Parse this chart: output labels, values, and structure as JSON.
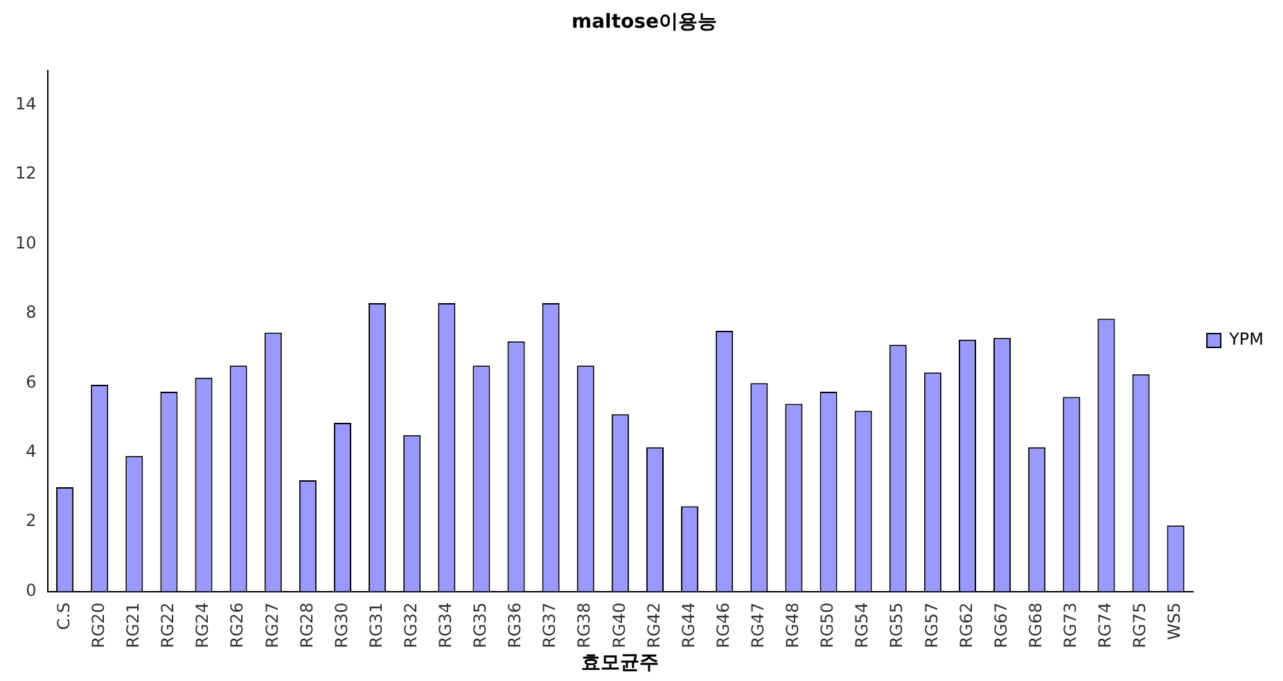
{
  "chart_data": {
    "type": "bar",
    "title": "maltose이용능",
    "xlabel": "효모균주",
    "categories": [
      "C.S",
      "RG20",
      "RG21",
      "RG22",
      "RG24",
      "RG26",
      "RG27",
      "RG28",
      "RG30",
      "RG31",
      "RG32",
      "RG34",
      "RG35",
      "RG36",
      "RG37",
      "RG38",
      "RG40",
      "RG42",
      "RG44",
      "RG46",
      "RG47",
      "RG48",
      "RG50",
      "RG54",
      "RG55",
      "RG57",
      "RG62",
      "RG67",
      "RG68",
      "RG73",
      "RG74",
      "RG75",
      "WS5"
    ],
    "series": [
      {
        "name": "YPM",
        "color": "#9999ff",
        "values": [
          3.0,
          5.95,
          3.9,
          5.75,
          6.15,
          6.5,
          7.45,
          3.2,
          4.85,
          8.3,
          4.5,
          8.3,
          6.5,
          7.2,
          8.3,
          6.5,
          5.1,
          4.15,
          2.45,
          7.5,
          6.0,
          5.4,
          5.75,
          5.2,
          7.1,
          6.3,
          7.25,
          7.3,
          4.15,
          5.6,
          7.85,
          6.25,
          1.9
        ]
      }
    ],
    "ylim": [
      0,
      15
    ],
    "yticks": [
      0,
      2,
      4,
      6,
      8,
      10,
      12,
      14
    ],
    "grid": false,
    "legend": "right"
  }
}
